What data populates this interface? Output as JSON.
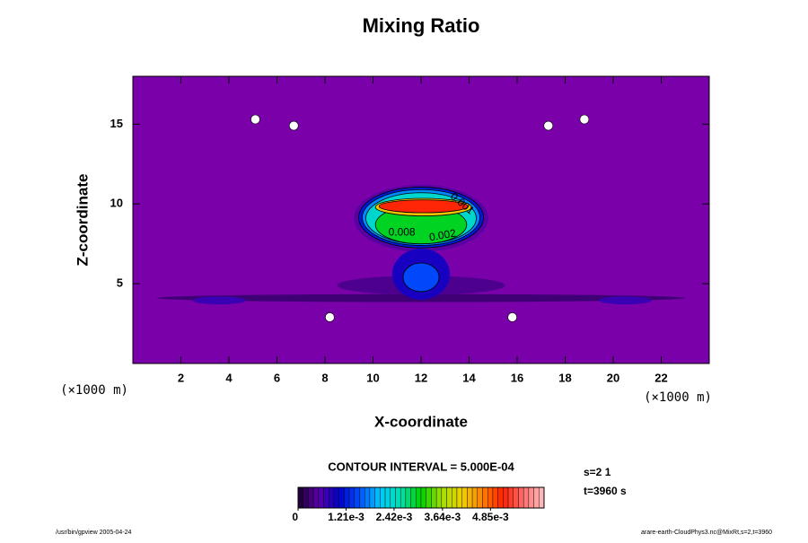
{
  "chart_data": {
    "type": "contour",
    "title": "Mixing Ratio",
    "xlabel": "X-coordinate",
    "ylabel": "Z-coordinate",
    "x_unit": "(×1000 m)",
    "y_unit": "(×1000 m)",
    "xlim": [
      0,
      24
    ],
    "ylim": [
      0,
      18
    ],
    "xticks": [
      2,
      4,
      6,
      8,
      10,
      12,
      14,
      16,
      18,
      20,
      22
    ],
    "yticks": [
      5,
      10,
      15
    ],
    "background_color": "#7a00aa",
    "regions": [
      {
        "cx": 12,
        "cz": 4.1,
        "rx": 11,
        "rz": 0.25,
        "value": 0.0003
      },
      {
        "cx": 3.6,
        "cz": 3.95,
        "rx": 1.1,
        "rz": 0.25,
        "value": 0.0007
      },
      {
        "cx": 20.5,
        "cz": 3.95,
        "rx": 1.1,
        "rz": 0.25,
        "value": 0.0007
      },
      {
        "cx": 12,
        "cz": 4.9,
        "rx": 3.5,
        "rz": 0.6,
        "value": 0.0004
      },
      {
        "cx": 12,
        "cz": 9.1,
        "rx": 2.8,
        "rz": 2.1,
        "value": 0.0005
      },
      {
        "cx": 12,
        "cz": 5.6,
        "rx": 1.2,
        "rz": 1.6,
        "value": 0.0009
      },
      {
        "cx": 12,
        "cz": 5.4,
        "rx": 0.75,
        "rz": 0.9,
        "value": 0.0015
      },
      {
        "cx": 12,
        "cz": 9.15,
        "rx": 2.6,
        "rz": 1.9,
        "value": 0.0012
      },
      {
        "cx": 12,
        "cz": 9.15,
        "rx": 2.45,
        "rz": 1.75,
        "value": 0.0018
      },
      {
        "cx": 12,
        "cz": 9.1,
        "rx": 2.3,
        "rz": 1.6,
        "value": 0.0024
      },
      {
        "cx": 12,
        "cz": 8.7,
        "rx": 1.9,
        "rz": 1.2,
        "value": 0.003
      },
      {
        "cx": 12.1,
        "cz": 9.8,
        "rx": 2.0,
        "rz": 0.55,
        "value": 0.0042
      },
      {
        "cx": 12.1,
        "cz": 9.85,
        "rx": 1.85,
        "rz": 0.4,
        "value": 0.0052
      }
    ],
    "blank_regions": [
      {
        "cx": 5.1,
        "cz": 15.3
      },
      {
        "cx": 6.7,
        "cz": 14.9
      },
      {
        "cx": 17.3,
        "cz": 14.9
      },
      {
        "cx": 18.8,
        "cz": 15.3
      },
      {
        "cx": 8.2,
        "cz": 2.9
      },
      {
        "cx": 15.8,
        "cz": 2.9
      }
    ],
    "contour_labels": [
      {
        "text": "0.001",
        "x": 13.7,
        "z": 10.0
      },
      {
        "text": "0.008",
        "x": 11.2,
        "z": 8.2
      },
      {
        "text": "0.002",
        "x": 12.9,
        "z": 8.0
      }
    ],
    "colorbar": {
      "title": "CONTOUR INTERVAL = 5.000E-04",
      "lim": [
        0,
        0.0062
      ],
      "ticks": [
        0,
        {
          "value": 0.00121,
          "label": "1.21e-3"
        },
        {
          "value": 0.00242,
          "label": "2.42e-3"
        },
        {
          "value": 0.00364,
          "label": "3.64e-3"
        },
        {
          "value": 0.00485,
          "label": "4.85e-3"
        }
      ],
      "colors": [
        "#1a0030",
        "#5a00a8",
        "#0000c8",
        "#0050ff",
        "#00c8ff",
        "#00e0b0",
        "#00d000",
        "#a0e000",
        "#f0d000",
        "#ff8000",
        "#ff2000",
        "#ff7070",
        "#ffc0c0"
      ]
    },
    "info": [
      "s=2 1",
      "t=3960 s"
    ],
    "footer_left": "/usr/bin/gpview 2005-04-24",
    "footer_right": "arare-earth-CloudPhys3.nc@MixRt,s=2,t=3960"
  }
}
